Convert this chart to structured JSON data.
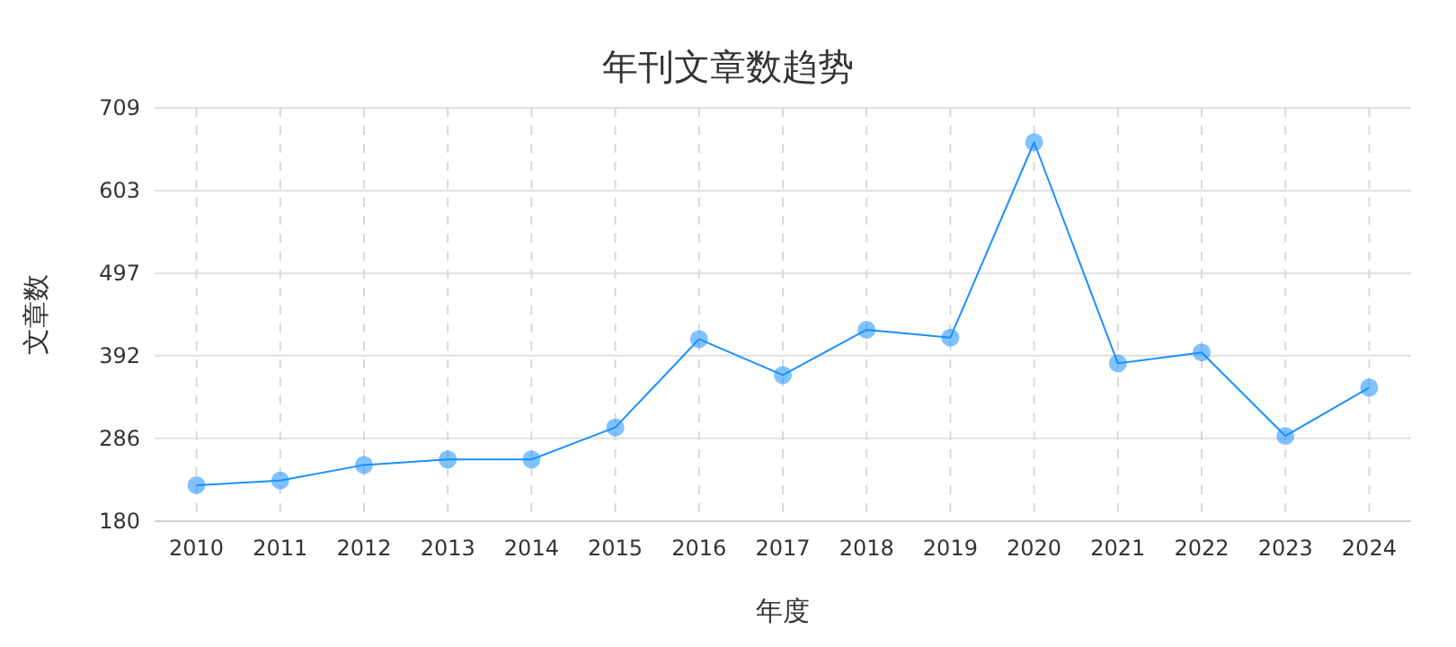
{
  "chart_data": {
    "type": "line",
    "title": "年刊文章数趋势",
    "xlabel": "年度",
    "ylabel": "文章数",
    "categories": [
      "2010",
      "2011",
      "2012",
      "2013",
      "2014",
      "2015",
      "2016",
      "2017",
      "2018",
      "2019",
      "2020",
      "2021",
      "2022",
      "2023",
      "2024"
    ],
    "series": [
      {
        "color": "#1890ff",
        "values": [
          226,
          232,
          252,
          259,
          259,
          300,
          413,
          367,
          425,
          415,
          665,
          382,
          396,
          289,
          351
        ]
      }
    ],
    "ylim": [
      180,
      709
    ],
    "yticks": [
      180,
      286,
      392,
      497,
      603,
      709
    ],
    "grid": true,
    "marker": "circle",
    "line_style": "solid"
  }
}
